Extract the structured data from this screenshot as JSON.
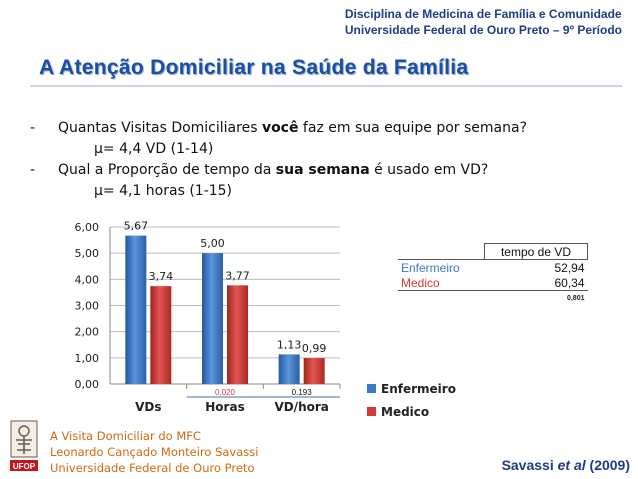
{
  "header": {
    "institution_line1": "Disciplina de Medicina de Família e Comunidade",
    "institution_line2": "Universidade Federal de Ouro Preto – 9º Período",
    "title": "A Atenção Domiciliar na Saúde da Família"
  },
  "bullets": [
    {
      "dash": "-",
      "q_pre": "Quantas Visitas Domiciliares ",
      "q_bold": "você",
      "q_post": " faz em sua equipe por semana?",
      "answer": "µ= 4,4 VD (1-14)"
    },
    {
      "dash": "-",
      "q_pre": "Qual a Proporção de tempo da ",
      "q_bold": "sua semana",
      "q_post": " é usado em VD?",
      "answer": "µ= 4,1 horas (1-15)"
    }
  ],
  "chart_data": {
    "type": "bar",
    "categories": [
      "VDs",
      "Horas",
      "VD/hora"
    ],
    "series": [
      {
        "name": "Enfermeiro",
        "values": [
          5.67,
          5.0,
          1.13
        ],
        "labels": [
          "5,67",
          "5,00",
          "1,13"
        ],
        "color": "#3a78c9"
      },
      {
        "name": "Medico",
        "values": [
          3.74,
          3.77,
          0.99
        ],
        "labels": [
          "3,74",
          "3,77",
          "0,99"
        ],
        "color": "#d43a33"
      }
    ],
    "ylim": [
      0,
      6
    ],
    "yticks": [
      "0,00",
      "1,00",
      "2,00",
      "3,00",
      "4,00",
      "5,00",
      "6,00"
    ],
    "grid": true,
    "legend_position": "right",
    "pvalues": [
      {
        "category": "Horas",
        "text": "0,020",
        "color": "#d43a33"
      },
      {
        "category": "VD/hora",
        "text": "0.193",
        "color": "#111111"
      }
    ]
  },
  "time_table": {
    "header": "tempo de VD",
    "rows": [
      {
        "label": "Enfermeiro",
        "value": "52,94",
        "color": "#3a78c9"
      },
      {
        "label": "Medico",
        "value": "60,34",
        "color": "#d43a33"
      }
    ],
    "pvalue": "0,801"
  },
  "footer": {
    "line1": "A Visita Domiciliar do MFC",
    "line2": "Leonardo Cançado Monteiro Savassi",
    "line3": "Universidade Federal de Ouro Preto",
    "logo_text": "UFOP"
  },
  "citation": {
    "pre": "Savassi ",
    "italic": "et al",
    "post": " (2009)"
  }
}
